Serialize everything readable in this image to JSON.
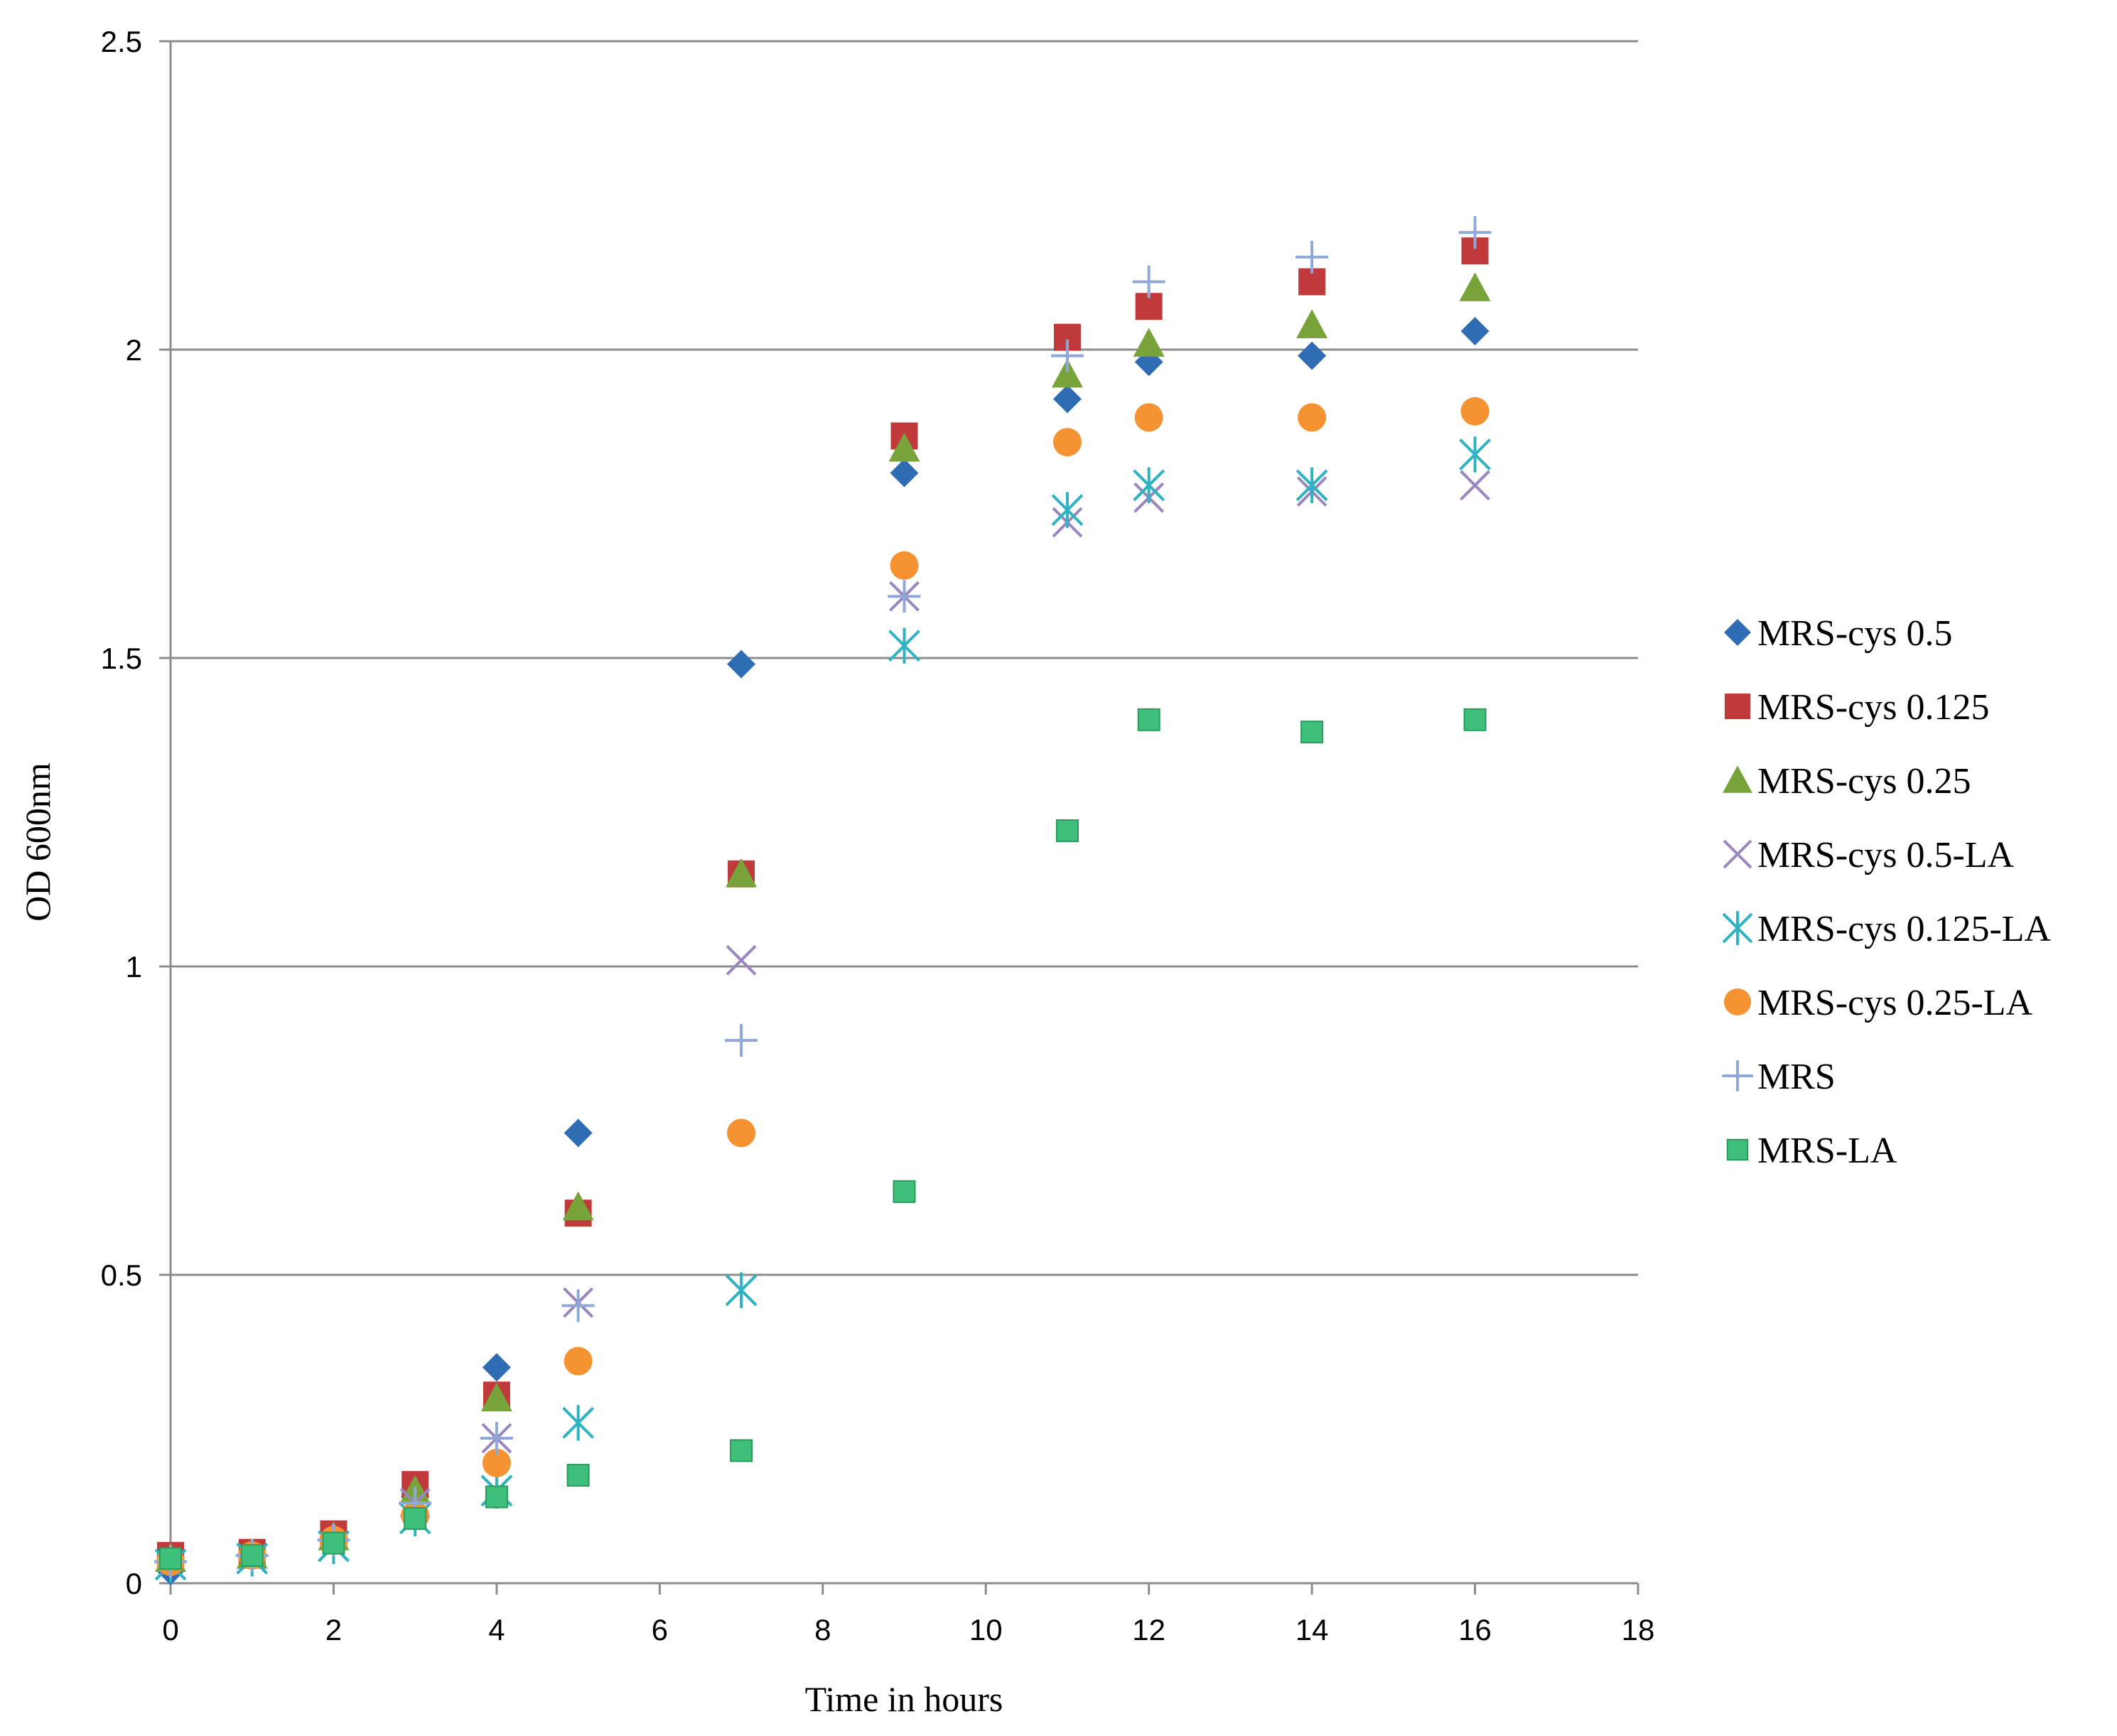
{
  "chart_data": {
    "type": "scatter",
    "title": "",
    "xlabel": "Time in hours",
    "ylabel": "OD 600nm",
    "xlim": [
      0,
      18
    ],
    "ylim": [
      0,
      2.5
    ],
    "xticks": [
      0,
      2,
      4,
      6,
      8,
      10,
      12,
      14,
      16,
      18
    ],
    "yticks": [
      0,
      0.5,
      1,
      1.5,
      2,
      2.5
    ],
    "ytick_labels": [
      "0",
      "0.5",
      "1",
      "1.5",
      "2",
      "2.5"
    ],
    "grid": "horizontal",
    "legend_position": "right",
    "series": [
      {
        "name": "MRS-cys 0.5",
        "marker": "diamond",
        "color": "#2e6db4",
        "x": [
          0,
          1,
          2,
          3,
          4,
          5,
          7,
          9,
          11,
          12,
          14,
          16
        ],
        "y": [
          0.02,
          0.045,
          0.07,
          0.14,
          0.35,
          0.73,
          1.49,
          1.8,
          1.92,
          1.98,
          1.99,
          2.03
        ]
      },
      {
        "name": "MRS-cys 0.125",
        "marker": "square",
        "color": "#c0393b",
        "x": [
          0,
          1,
          2,
          3,
          4,
          5,
          7,
          9,
          11,
          12,
          14,
          16
        ],
        "y": [
          0.045,
          0.05,
          0.08,
          0.16,
          0.305,
          0.6,
          1.15,
          1.86,
          2.02,
          2.07,
          2.11,
          2.16
        ]
      },
      {
        "name": "MRS-cys 0.25",
        "marker": "triangle",
        "color": "#78a33a",
        "x": [
          0,
          1,
          2,
          3,
          4,
          5,
          7,
          9,
          11,
          12,
          14,
          16
        ],
        "y": [
          0.04,
          0.045,
          0.075,
          0.15,
          0.3,
          0.61,
          1.15,
          1.84,
          1.96,
          2.01,
          2.04,
          2.1
        ]
      },
      {
        "name": "MRS-cys 0.5-LA",
        "marker": "x",
        "color": "#9b86bf",
        "x": [
          0,
          1,
          2,
          3,
          4,
          5,
          7,
          9,
          11,
          12,
          14,
          16
        ],
        "y": [
          0.03,
          0.04,
          0.06,
          0.13,
          0.235,
          0.455,
          1.01,
          1.6,
          1.72,
          1.76,
          1.77,
          1.78
        ]
      },
      {
        "name": "MRS-cys 0.125-LA",
        "marker": "asterisk",
        "color": "#2fb3c2",
        "x": [
          0,
          1,
          2,
          3,
          4,
          5,
          7,
          9,
          11,
          12,
          14,
          16
        ],
        "y": [
          0.03,
          0.04,
          0.06,
          0.105,
          0.15,
          0.26,
          0.475,
          1.52,
          1.74,
          1.78,
          1.78,
          1.83
        ]
      },
      {
        "name": "MRS-cys 0.25-LA",
        "marker": "circle",
        "color": "#f59232",
        "x": [
          0,
          1,
          2,
          3,
          4,
          5,
          7,
          9,
          11,
          12,
          14,
          16
        ],
        "y": [
          0.035,
          0.045,
          0.07,
          0.11,
          0.195,
          0.36,
          0.73,
          1.65,
          1.85,
          1.89,
          1.89,
          1.9
        ]
      },
      {
        "name": "MRS",
        "marker": "plus",
        "color": "#8fa8d8",
        "x": [
          0,
          1,
          2,
          3,
          4,
          5,
          7,
          9,
          11,
          12,
          14,
          16
        ],
        "y": [
          0.035,
          0.045,
          0.07,
          0.13,
          0.235,
          0.45,
          0.88,
          1.6,
          1.99,
          2.11,
          2.15,
          2.19
        ]
      },
      {
        "name": "MRS-LA",
        "marker": "small-square",
        "color": "#3ec07a",
        "x": [
          0,
          1,
          2,
          3,
          4,
          5,
          7,
          9,
          11,
          12,
          14,
          16
        ],
        "y": [
          0.04,
          0.045,
          0.065,
          0.105,
          0.14,
          0.175,
          0.215,
          0.635,
          1.22,
          1.4,
          1.38,
          1.4
        ]
      }
    ]
  }
}
